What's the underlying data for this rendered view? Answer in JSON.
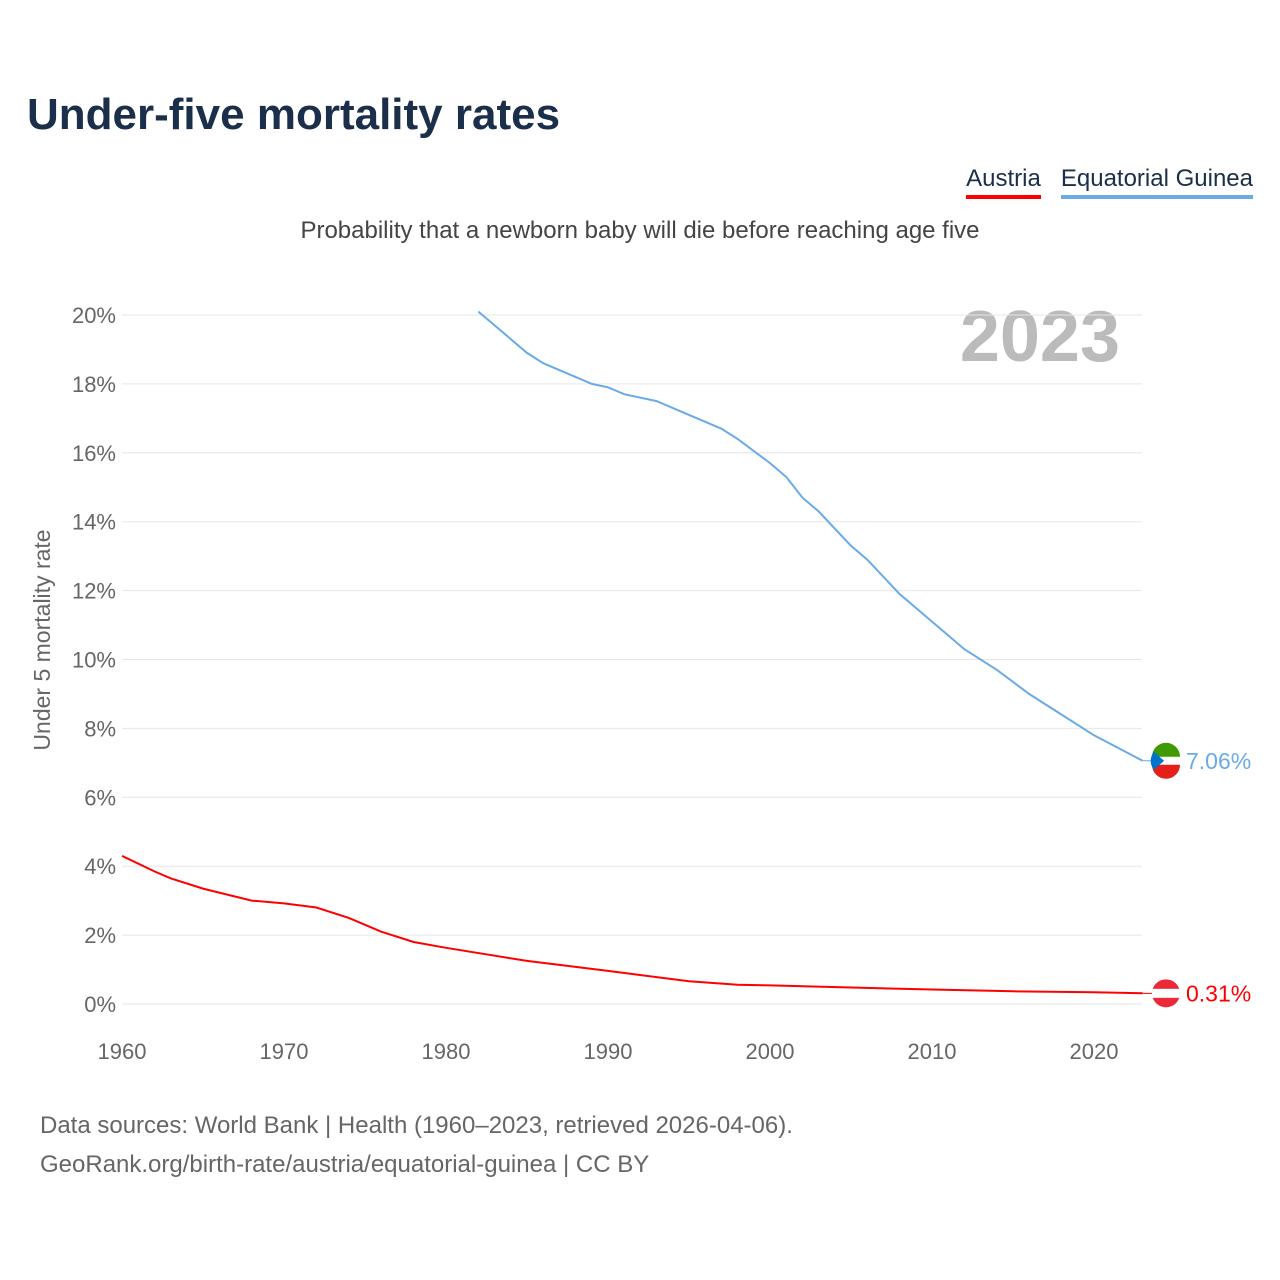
{
  "title": "Under-five mortality rates",
  "subtitle": "Probability that a newborn baby will die before reaching age five",
  "footer": {
    "line1": "Data sources: World Bank | Health (1960–2023, retrieved 2026-04-06).",
    "line2": "GeoRank.org/birth-rate/austria/equatorial-guinea | CC BY"
  },
  "chart_data": {
    "type": "line",
    "title": "Under-five mortality rates",
    "ylabel": "Under 5 mortality rate",
    "xlabel": "",
    "xlim": [
      1960,
      2023
    ],
    "ylim": [
      0,
      20
    ],
    "x_ticks": [
      "1960",
      "1970",
      "1980",
      "1990",
      "2000",
      "2010",
      "2020"
    ],
    "y_ticks": [
      "0%",
      "2%",
      "4%",
      "6%",
      "8%",
      "10%",
      "12%",
      "14%",
      "16%",
      "18%",
      "20%"
    ],
    "year_label": "2023",
    "legend_position": "top-right",
    "series": [
      {
        "name": "Austria",
        "color": "#ff0000",
        "end_label": "0.31%",
        "points": [
          [
            1960,
            4.3
          ],
          [
            1962,
            3.85
          ],
          [
            1963,
            3.65
          ],
          [
            1965,
            3.35
          ],
          [
            1968,
            3.0
          ],
          [
            1970,
            2.92
          ],
          [
            1972,
            2.8
          ],
          [
            1974,
            2.5
          ],
          [
            1976,
            2.1
          ],
          [
            1978,
            1.8
          ],
          [
            1980,
            1.63
          ],
          [
            1985,
            1.25
          ],
          [
            1990,
            0.96
          ],
          [
            1995,
            0.66
          ],
          [
            1998,
            0.56
          ],
          [
            2000,
            0.54
          ],
          [
            2005,
            0.48
          ],
          [
            2010,
            0.42
          ],
          [
            2015,
            0.37
          ],
          [
            2020,
            0.34
          ],
          [
            2023,
            0.31
          ]
        ]
      },
      {
        "name": "Equatorial Guinea",
        "color": "#6aaae8",
        "end_label": "7.06%",
        "points": [
          [
            1982,
            20.1
          ],
          [
            1985,
            18.9
          ],
          [
            1986,
            18.6
          ],
          [
            1989,
            18.0
          ],
          [
            1990,
            17.9
          ],
          [
            1991,
            17.7
          ],
          [
            1993,
            17.5
          ],
          [
            1995,
            17.1
          ],
          [
            1997,
            16.7
          ],
          [
            1998,
            16.4
          ],
          [
            2000,
            15.7
          ],
          [
            2001,
            15.3
          ],
          [
            2002,
            14.7
          ],
          [
            2003,
            14.3
          ],
          [
            2005,
            13.3
          ],
          [
            2006,
            12.9
          ],
          [
            2008,
            11.9
          ],
          [
            2010,
            11.1
          ],
          [
            2012,
            10.3
          ],
          [
            2014,
            9.7
          ],
          [
            2016,
            9.0
          ],
          [
            2018,
            8.4
          ],
          [
            2020,
            7.8
          ],
          [
            2023,
            7.06
          ]
        ]
      }
    ]
  }
}
